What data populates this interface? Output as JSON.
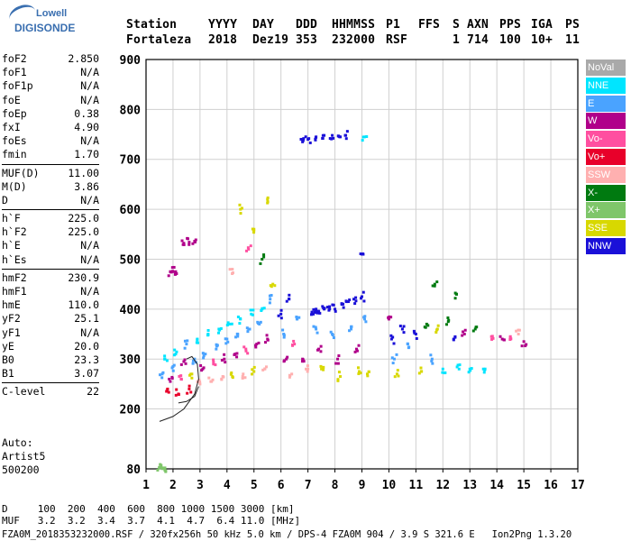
{
  "logo": {
    "top": "Lowell",
    "bottom": "DIGISONDE"
  },
  "header": {
    "labels": [
      "Station",
      "YYYY",
      "DAY",
      "DDD",
      "HHMMSS",
      "P1",
      "FFS",
      "S",
      "AXN",
      "PPS",
      "IGA",
      "PS"
    ],
    "values": [
      "Fortaleza",
      "2018",
      "Dez19",
      "353",
      "232000",
      "RSF",
      "",
      "1",
      "714",
      "100",
      "10+",
      "11"
    ]
  },
  "params": [
    {
      "group": [
        {
          "name": "foF2",
          "value": "2.850"
        },
        {
          "name": "foF1",
          "value": "N/A"
        },
        {
          "name": "foF1p",
          "value": "N/A"
        },
        {
          "name": "foE",
          "value": "N/A"
        },
        {
          "name": "foEp",
          "value": "0.38"
        },
        {
          "name": "fxI",
          "value": "4.90"
        },
        {
          "name": "foEs",
          "value": "N/A"
        },
        {
          "name": "fmin",
          "value": "1.70"
        }
      ]
    },
    {
      "group": [
        {
          "name": "MUF(D)",
          "value": "11.00"
        },
        {
          "name": "M(D)",
          "value": "3.86"
        },
        {
          "name": "D",
          "value": "N/A"
        }
      ]
    },
    {
      "group": [
        {
          "name": "h`F",
          "value": "225.0"
        },
        {
          "name": "h`F2",
          "value": "225.0"
        },
        {
          "name": "h`E",
          "value": "N/A"
        },
        {
          "name": "h`Es",
          "value": "N/A"
        }
      ]
    },
    {
      "group": [
        {
          "name": "hmF2",
          "value": "230.9"
        },
        {
          "name": "hmF1",
          "value": "N/A"
        },
        {
          "name": "hmE",
          "value": "110.0"
        },
        {
          "name": "yF2",
          "value": "25.1"
        },
        {
          "name": "yF1",
          "value": "N/A"
        },
        {
          "name": "yE",
          "value": "20.0"
        },
        {
          "name": "B0",
          "value": "23.3"
        },
        {
          "name": "B1",
          "value": "3.07"
        }
      ]
    },
    {
      "group": [
        {
          "name": "C-level",
          "value": "22"
        }
      ]
    }
  ],
  "auto": [
    "Auto:",
    "Artist5",
    "500200"
  ],
  "legend": [
    {
      "label": "NoVal",
      "color": "#a9a9a9"
    },
    {
      "label": "NNE",
      "color": "#00e5ff"
    },
    {
      "label": "E",
      "color": "#4aa3ff"
    },
    {
      "label": "W",
      "color": "#b0008a"
    },
    {
      "label": "Vo-",
      "color": "#ff4fa0"
    },
    {
      "label": "Vo+",
      "color": "#e8002a"
    },
    {
      "label": "SSW",
      "color": "#ffb0b0"
    },
    {
      "label": "X-",
      "color": "#007a10"
    },
    {
      "label": "X+",
      "color": "#7fc66a"
    },
    {
      "label": "SSE",
      "color": "#d8d800"
    },
    {
      "label": "NNW",
      "color": "#1a10d8"
    }
  ],
  "bottom": {
    "line1": "D     100  200  400  600  800 1000 1500 3000 [km]",
    "line2": "MUF   3.2  3.2  3.4  3.7  4.1  4.7  6.4 11.0 [MHz]",
    "line3": "FZA0M_2018353232000.RSF / 320fx256h 50 kHz 5.0 km / DPS-4 FZA0M 904 / 3.9 S 321.6 E   Ion2Png 1.3.20"
  },
  "chart_data": {
    "type": "scatter",
    "xlim": [
      1,
      17
    ],
    "ylim": [
      80,
      900
    ],
    "x_ticks": [
      1,
      2,
      3,
      4,
      5,
      6,
      7,
      8,
      9,
      10,
      11,
      12,
      13,
      14,
      15,
      16,
      17
    ],
    "y_ticks": [
      80,
      200,
      300,
      400,
      500,
      600,
      700,
      800,
      900
    ],
    "grid": true,
    "legend_position": "right",
    "points": [
      {
        "x": 1.5,
        "y": 82,
        "s": "X+"
      },
      {
        "x": 1.6,
        "y": 82,
        "s": "X+"
      },
      {
        "x": 1.7,
        "y": 82,
        "s": "X+"
      },
      {
        "x": 1.9,
        "y": 475,
        "s": "W"
      },
      {
        "x": 2.0,
        "y": 475,
        "s": "W"
      },
      {
        "x": 2.1,
        "y": 475,
        "s": "W"
      },
      {
        "x": 2.4,
        "y": 532,
        "s": "W"
      },
      {
        "x": 2.6,
        "y": 534,
        "s": "W"
      },
      {
        "x": 2.8,
        "y": 536,
        "s": "W"
      },
      {
        "x": 1.6,
        "y": 270,
        "s": "E"
      },
      {
        "x": 1.7,
        "y": 300,
        "s": "NNE"
      },
      {
        "x": 1.8,
        "y": 240,
        "s": "Vo+"
      },
      {
        "x": 1.9,
        "y": 255,
        "s": "W"
      },
      {
        "x": 2.0,
        "y": 285,
        "s": "E"
      },
      {
        "x": 2.1,
        "y": 310,
        "s": "NNE"
      },
      {
        "x": 2.2,
        "y": 230,
        "s": "Vo+"
      },
      {
        "x": 2.3,
        "y": 260,
        "s": "Vo-"
      },
      {
        "x": 2.4,
        "y": 295,
        "s": "W"
      },
      {
        "x": 2.5,
        "y": 330,
        "s": "E"
      },
      {
        "x": 2.6,
        "y": 240,
        "s": "Vo+"
      },
      {
        "x": 2.7,
        "y": 270,
        "s": "SSE"
      },
      {
        "x": 2.8,
        "y": 300,
        "s": "E"
      },
      {
        "x": 2.9,
        "y": 340,
        "s": "NNE"
      },
      {
        "x": 3.0,
        "y": 250,
        "s": "SSW"
      },
      {
        "x": 3.1,
        "y": 280,
        "s": "W"
      },
      {
        "x": 3.2,
        "y": 310,
        "s": "E"
      },
      {
        "x": 3.3,
        "y": 350,
        "s": "NNE"
      },
      {
        "x": 3.4,
        "y": 255,
        "s": "SSW"
      },
      {
        "x": 3.5,
        "y": 290,
        "s": "Vo-"
      },
      {
        "x": 3.6,
        "y": 320,
        "s": "E"
      },
      {
        "x": 3.7,
        "y": 360,
        "s": "NNE"
      },
      {
        "x": 3.8,
        "y": 260,
        "s": "SSW"
      },
      {
        "x": 3.9,
        "y": 300,
        "s": "W"
      },
      {
        "x": 4.0,
        "y": 340,
        "s": "E"
      },
      {
        "x": 4.1,
        "y": 370,
        "s": "NNE"
      },
      {
        "x": 4.2,
        "y": 265,
        "s": "SSE"
      },
      {
        "x": 4.3,
        "y": 310,
        "s": "W"
      },
      {
        "x": 4.4,
        "y": 350,
        "s": "E"
      },
      {
        "x": 4.5,
        "y": 380,
        "s": "NNE"
      },
      {
        "x": 4.6,
        "y": 270,
        "s": "SSW"
      },
      {
        "x": 4.7,
        "y": 320,
        "s": "Vo-"
      },
      {
        "x": 4.8,
        "y": 360,
        "s": "E"
      },
      {
        "x": 4.9,
        "y": 390,
        "s": "NNE"
      },
      {
        "x": 5.0,
        "y": 275,
        "s": "SSE"
      },
      {
        "x": 5.1,
        "y": 330,
        "s": "W"
      },
      {
        "x": 5.2,
        "y": 370,
        "s": "E"
      },
      {
        "x": 5.3,
        "y": 400,
        "s": "NNE"
      },
      {
        "x": 5.4,
        "y": 280,
        "s": "SSW"
      },
      {
        "x": 5.5,
        "y": 340,
        "s": "W"
      },
      {
        "x": 5.6,
        "y": 420,
        "s": "E"
      },
      {
        "x": 5.7,
        "y": 450,
        "s": "SSE"
      },
      {
        "x": 4.5,
        "y": 600,
        "s": "SSE"
      },
      {
        "x": 5.0,
        "y": 560,
        "s": "SSE"
      },
      {
        "x": 5.5,
        "y": 620,
        "s": "SSE"
      },
      {
        "x": 4.2,
        "y": 480,
        "s": "SSW"
      },
      {
        "x": 4.8,
        "y": 520,
        "s": "Vo-"
      },
      {
        "x": 5.3,
        "y": 500,
        "s": "X-"
      },
      {
        "x": 6.0,
        "y": 390,
        "s": "NNW"
      },
      {
        "x": 6.1,
        "y": 350,
        "s": "E"
      },
      {
        "x": 6.2,
        "y": 300,
        "s": "W"
      },
      {
        "x": 6.3,
        "y": 420,
        "s": "NNW"
      },
      {
        "x": 6.4,
        "y": 270,
        "s": "SSW"
      },
      {
        "x": 6.5,
        "y": 330,
        "s": "Vo-"
      },
      {
        "x": 6.6,
        "y": 380,
        "s": "E"
      },
      {
        "x": 6.8,
        "y": 300,
        "s": "W"
      },
      {
        "x": 7.0,
        "y": 280,
        "s": "SSW"
      },
      {
        "x": 7.2,
        "y": 390,
        "s": "NNW"
      },
      {
        "x": 7.3,
        "y": 400,
        "s": "NNW"
      },
      {
        "x": 7.4,
        "y": 395,
        "s": "NNW"
      },
      {
        "x": 7.3,
        "y": 360,
        "s": "E"
      },
      {
        "x": 7.4,
        "y": 320,
        "s": "W"
      },
      {
        "x": 7.5,
        "y": 280,
        "s": "SSE"
      },
      {
        "x": 7.6,
        "y": 400,
        "s": "NNW"
      },
      {
        "x": 7.8,
        "y": 405,
        "s": "NNW"
      },
      {
        "x": 8.0,
        "y": 400,
        "s": "NNW"
      },
      {
        "x": 7.9,
        "y": 350,
        "s": "E"
      },
      {
        "x": 8.1,
        "y": 300,
        "s": "W"
      },
      {
        "x": 8.2,
        "y": 265,
        "s": "SSE"
      },
      {
        "x": 8.3,
        "y": 410,
        "s": "NNW"
      },
      {
        "x": 8.5,
        "y": 415,
        "s": "NNW"
      },
      {
        "x": 8.7,
        "y": 420,
        "s": "NNW"
      },
      {
        "x": 8.6,
        "y": 360,
        "s": "E"
      },
      {
        "x": 8.8,
        "y": 320,
        "s": "W"
      },
      {
        "x": 8.9,
        "y": 275,
        "s": "SSE"
      },
      {
        "x": 9.0,
        "y": 425,
        "s": "NNW"
      },
      {
        "x": 9.1,
        "y": 380,
        "s": "E"
      },
      {
        "x": 9.2,
        "y": 270,
        "s": "SSE"
      },
      {
        "x": 7.0,
        "y": 740,
        "s": "NNW"
      },
      {
        "x": 7.3,
        "y": 745,
        "s": "NNW"
      },
      {
        "x": 7.6,
        "y": 748,
        "s": "NNW"
      },
      {
        "x": 7.9,
        "y": 748,
        "s": "NNW"
      },
      {
        "x": 8.2,
        "y": 745,
        "s": "NNW"
      },
      {
        "x": 8.4,
        "y": 748,
        "s": "NNW"
      },
      {
        "x": 9.1,
        "y": 745,
        "s": "NNE"
      },
      {
        "x": 6.8,
        "y": 735,
        "s": "NNW"
      },
      {
        "x": 10.0,
        "y": 380,
        "s": "W"
      },
      {
        "x": 10.1,
        "y": 340,
        "s": "NNW"
      },
      {
        "x": 10.2,
        "y": 300,
        "s": "E"
      },
      {
        "x": 10.3,
        "y": 270,
        "s": "SSE"
      },
      {
        "x": 10.5,
        "y": 360,
        "s": "NNW"
      },
      {
        "x": 10.7,
        "y": 330,
        "s": "E"
      },
      {
        "x": 11.0,
        "y": 350,
        "s": "NNW"
      },
      {
        "x": 11.2,
        "y": 275,
        "s": "SSE"
      },
      {
        "x": 11.4,
        "y": 370,
        "s": "X-"
      },
      {
        "x": 11.6,
        "y": 300,
        "s": "E"
      },
      {
        "x": 11.8,
        "y": 360,
        "s": "SSE"
      },
      {
        "x": 12.0,
        "y": 280,
        "s": "NNE"
      },
      {
        "x": 12.2,
        "y": 375,
        "s": "X-"
      },
      {
        "x": 12.4,
        "y": 340,
        "s": "NNW"
      },
      {
        "x": 12.6,
        "y": 280,
        "s": "NNE"
      },
      {
        "x": 12.8,
        "y": 350,
        "s": "W"
      },
      {
        "x": 13.0,
        "y": 280,
        "s": "NNE"
      },
      {
        "x": 13.2,
        "y": 360,
        "s": "X-"
      },
      {
        "x": 13.5,
        "y": 280,
        "s": "NNE"
      },
      {
        "x": 13.8,
        "y": 345,
        "s": "Vo-"
      },
      {
        "x": 14.2,
        "y": 340,
        "s": "W"
      },
      {
        "x": 14.5,
        "y": 345,
        "s": "Vo-"
      },
      {
        "x": 14.8,
        "y": 350,
        "s": "SSW"
      },
      {
        "x": 15.0,
        "y": 335,
        "s": "W"
      },
      {
        "x": 11.7,
        "y": 450,
        "s": "X-"
      },
      {
        "x": 12.5,
        "y": 430,
        "s": "X-"
      },
      {
        "x": 9.0,
        "y": 510,
        "s": "NNW"
      }
    ],
    "curves": [
      {
        "name": "profile",
        "points": [
          [
            1.5,
            175
          ],
          [
            2.0,
            185
          ],
          [
            2.4,
            200
          ],
          [
            2.8,
            230
          ],
          [
            2.95,
            260
          ],
          [
            2.9,
            290
          ],
          [
            2.7,
            305
          ],
          [
            2.5,
            300
          ]
        ]
      },
      {
        "name": "profile2",
        "points": [
          [
            2.2,
            212
          ],
          [
            2.5,
            215
          ],
          [
            2.8,
            225
          ],
          [
            2.95,
            245
          ]
        ]
      }
    ]
  }
}
